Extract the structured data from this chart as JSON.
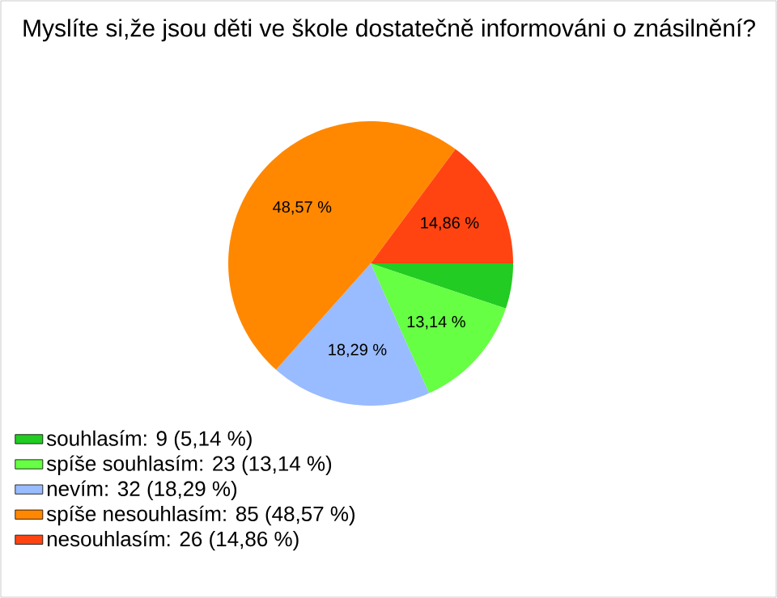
{
  "chart_data": {
    "type": "pie",
    "title": "Myslíte si,že jsou děti ve škole dostatečně informováni o znásilnění?",
    "categories": [
      "souhlasím: 9 (5,14 %)",
      "spíše souhlasím: 23 (13,14 %)",
      "nevím: 32 (18,29 %)",
      "spíše nesouhlasím: 85 (48,57 %)",
      "nesouhlasím: 26 (14,86 %)"
    ],
    "values": [
      5.14,
      13.14,
      18.29,
      48.57,
      14.86
    ],
    "value_labels": [
      null,
      "13,14 %",
      "18,29 %",
      "48,57 %",
      "14,86 %"
    ],
    "colors": [
      "#22cc22",
      "#66ff44",
      "#99bbff",
      "#ff8800",
      "#ff4411"
    ],
    "legend": "bottom left"
  }
}
